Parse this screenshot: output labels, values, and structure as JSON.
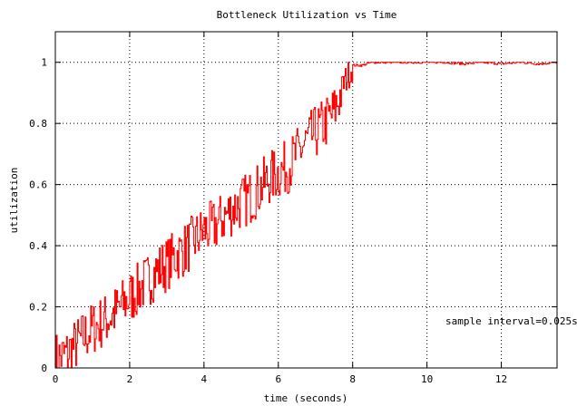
{
  "chart_data": {
    "type": "line",
    "title": "Bottleneck Utilization vs Time",
    "xlabel": "time (seconds)",
    "ylabel": "utilization",
    "xlim": [
      0,
      13.5
    ],
    "ylim": [
      0,
      1.1
    ],
    "x_ticks": [
      0,
      2,
      4,
      6,
      8,
      10,
      12
    ],
    "y_ticks": [
      0,
      0.2,
      0.4,
      0.6,
      0.8,
      1
    ],
    "x_tick_labels": [
      "0",
      "2",
      "4",
      "6",
      "8",
      "10",
      "12"
    ],
    "y_tick_labels": [
      "0",
      "0.2",
      "0.4",
      "0.6",
      "0.8",
      "1"
    ],
    "grid": true,
    "annotation": "sample interval=0.025s",
    "sample_interval": 0.025,
    "series": [
      {
        "color": "#ff0000",
        "step": true,
        "x": [
          0,
          0.25,
          0.5,
          0.75,
          1.0,
          1.25,
          1.5,
          1.75,
          2.0,
          2.25,
          2.5,
          2.75,
          3.0,
          3.25,
          3.5,
          3.75,
          4.0,
          4.25,
          4.5,
          4.75,
          5.0,
          5.25,
          5.5,
          5.75,
          6.0,
          6.25,
          6.5,
          6.75,
          7.0,
          7.25,
          7.5,
          7.75,
          8.0,
          8.25,
          8.5,
          9.0,
          9.5,
          10.0,
          10.5,
          11.0,
          11.5,
          12.0,
          12.5,
          13.0,
          13.5
        ],
        "y": [
          0.03,
          0.04,
          0.07,
          0.1,
          0.13,
          0.15,
          0.17,
          0.2,
          0.23,
          0.26,
          0.29,
          0.32,
          0.34,
          0.37,
          0.39,
          0.42,
          0.45,
          0.46,
          0.49,
          0.52,
          0.54,
          0.56,
          0.59,
          0.62,
          0.64,
          0.66,
          0.7,
          0.74,
          0.77,
          0.8,
          0.84,
          0.93,
          0.99,
          0.99,
          1.0,
          1.0,
          1.0,
          1.0,
          1.0,
          0.995,
          1.0,
          0.995,
          1.0,
          0.995,
          1.0
        ]
      }
    ]
  }
}
